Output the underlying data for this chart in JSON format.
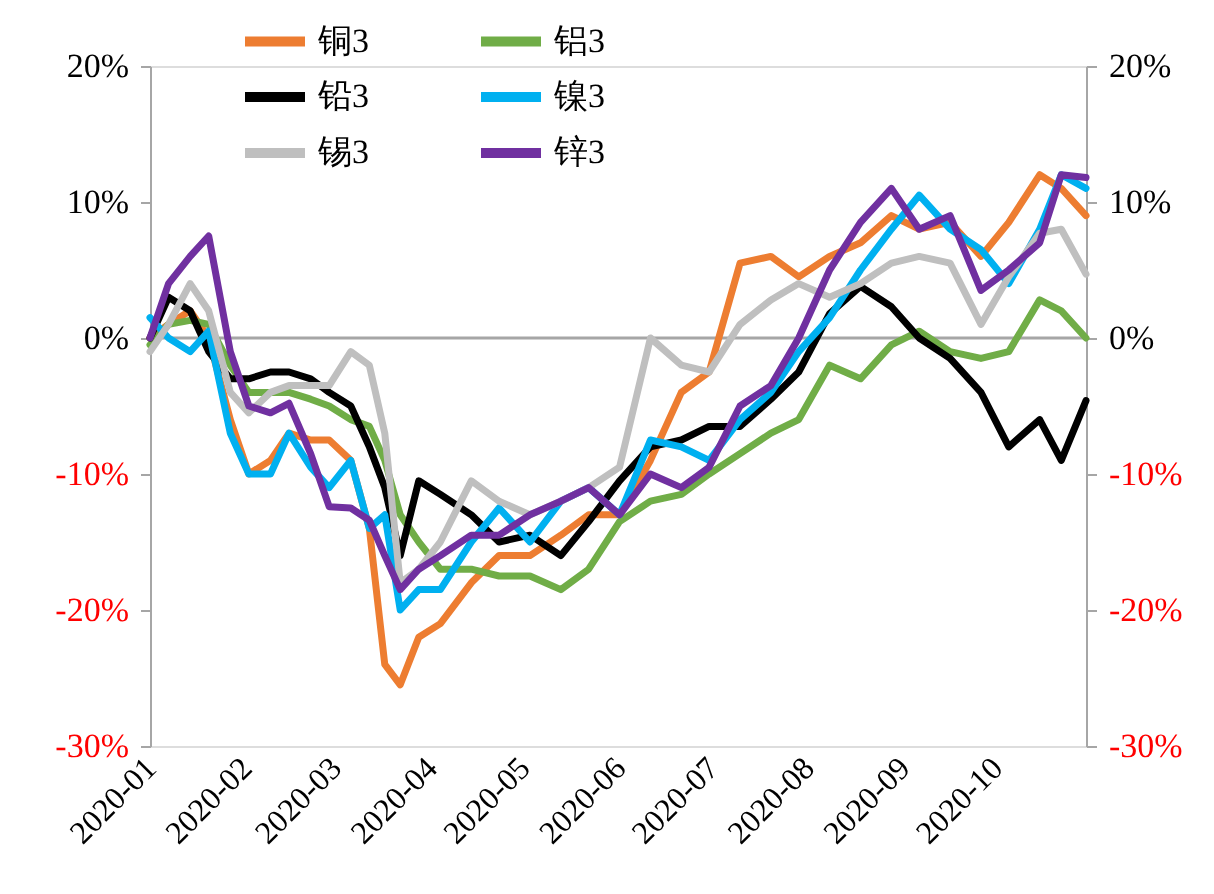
{
  "chart_data": {
    "type": "line",
    "x": [
      "2020-01-01",
      "2020-01-07",
      "2020-01-14",
      "2020-01-20",
      "2020-01-27",
      "2020-02-02",
      "2020-02-09",
      "2020-02-15",
      "2020-02-22",
      "2020-02-28",
      "2020-03-06",
      "2020-03-12",
      "2020-03-17",
      "2020-03-22",
      "2020-03-28",
      "2020-04-04",
      "2020-04-14",
      "2020-04-23",
      "2020-05-03",
      "2020-05-13",
      "2020-05-22",
      "2020-06-01",
      "2020-06-11",
      "2020-06-21",
      "2020-06-30",
      "2020-07-10",
      "2020-07-20",
      "2020-07-29",
      "2020-08-08",
      "2020-08-18",
      "2020-08-28",
      "2020-09-06",
      "2020-09-16",
      "2020-09-26",
      "2020-10-05",
      "2020-10-15",
      "2020-10-22",
      "2020-10-30"
    ],
    "series": [
      {
        "name": "铜3",
        "color": "#ed7d31",
        "values": [
          0,
          1,
          2,
          0,
          -6,
          -10,
          -9,
          -7,
          -7.5,
          -7.5,
          -9,
          -14,
          -24,
          -25.5,
          -22,
          -21,
          -18,
          -16,
          -16,
          -14.5,
          -13,
          -13,
          -9,
          -4,
          -2.5,
          5.5,
          6,
          4.5,
          6,
          7,
          9,
          8,
          8.5,
          6,
          8.5,
          12,
          11,
          9
        ]
      },
      {
        "name": "铝3",
        "color": "#70ad47",
        "values": [
          -0.5,
          1,
          1.3,
          1,
          -2,
          -4,
          -4,
          -4,
          -4.5,
          -5,
          -6,
          -6.5,
          -9,
          -13,
          -15,
          -17,
          -17,
          -17.5,
          -17.5,
          -18.5,
          -17,
          -13.5,
          -12,
          -11.5,
          -10,
          -8.5,
          -7,
          -6,
          -2,
          -3,
          -0.5,
          0.5,
          -1,
          -1.5,
          -1,
          2.8,
          2,
          0
        ]
      },
      {
        "name": "铅3",
        "color": "#000000",
        "values": [
          0,
          3,
          2,
          -1,
          -3,
          -3,
          -2.5,
          -2.5,
          -3,
          -4,
          -5,
          -8,
          -11,
          -16,
          -10.5,
          -11.5,
          -13,
          -15,
          -14.5,
          -16,
          -13.5,
          -10.5,
          -8,
          -7.5,
          -6.5,
          -6.5,
          -4.5,
          -2.5,
          1.8,
          3.8,
          2.3,
          0,
          -1.5,
          -4,
          -8,
          -6,
          -9,
          -4.6
        ]
      },
      {
        "name": "镍3",
        "color": "#00b0f0",
        "values": [
          1.5,
          0,
          -1,
          0.5,
          -7,
          -10,
          -10,
          -7,
          -9.5,
          -11,
          -9,
          -14,
          -13,
          -20,
          -18.5,
          -18.5,
          -15,
          -12.5,
          -15,
          -12,
          -11,
          -13,
          -7.5,
          -8,
          -9,
          -6,
          -4,
          -1,
          1.5,
          5,
          8,
          10.5,
          8,
          6.5,
          4,
          8,
          12,
          11
        ]
      },
      {
        "name": "锡3",
        "color": "#bfbfbf",
        "values": [
          -1,
          1,
          4,
          2,
          -4,
          -5.5,
          -4,
          -3.5,
          -3.5,
          -3.5,
          -1,
          -2,
          -7,
          -18,
          -17,
          -15,
          -10.5,
          -12,
          -13,
          -12,
          -11,
          -9.5,
          0,
          -2,
          -2.5,
          1,
          2.8,
          4,
          3,
          4,
          5.5,
          6,
          5.5,
          1,
          4.5,
          7.7,
          8,
          4.7
        ]
      },
      {
        "name": "锌3",
        "color": "#7030a0",
        "values": [
          0,
          4,
          6,
          7.5,
          -1,
          -5,
          -5.5,
          -4.8,
          -8.5,
          -12.4,
          -12.5,
          -13.4,
          -16,
          -18.5,
          -17,
          -16,
          -14.5,
          -14.5,
          -13,
          -12,
          -11,
          -13,
          -10,
          -11,
          -9.5,
          -5,
          -3.5,
          0,
          5,
          8.5,
          11,
          8,
          9,
          3.5,
          5,
          7,
          12,
          11.8
        ]
      }
    ],
    "xlim": [
      "2020-01-01",
      "2020-10-30"
    ],
    "xticks": [
      "2020-01",
      "2020-02",
      "2020-03",
      "2020-04",
      "2020-05",
      "2020-06",
      "2020-07",
      "2020-08",
      "2020-09",
      "2020-10"
    ],
    "ylim": [
      -30,
      20
    ],
    "yticks": [
      {
        "value": -30,
        "label": "-30%"
      },
      {
        "value": -20,
        "label": "-20%"
      },
      {
        "value": -10,
        "label": "-10%"
      },
      {
        "value": 0,
        "label": "0%"
      },
      {
        "value": 10,
        "label": "10%"
      },
      {
        "value": 20,
        "label": "20%"
      }
    ],
    "y2lim": [
      -30,
      20
    ],
    "y2ticks": [
      {
        "value": -30,
        "label": "-30%"
      },
      {
        "value": -20,
        "label": "-20%"
      },
      {
        "value": -10,
        "label": "-10%"
      },
      {
        "value": 0,
        "label": "0%"
      },
      {
        "value": 10,
        "label": "10%"
      },
      {
        "value": 20,
        "label": "20%"
      }
    ],
    "ref_lines": [
      {
        "axis": "y",
        "value": 0,
        "color": "#a6a6a6"
      }
    ],
    "legend": "top",
    "grid": false,
    "line_style": "solid",
    "marker": "none"
  }
}
